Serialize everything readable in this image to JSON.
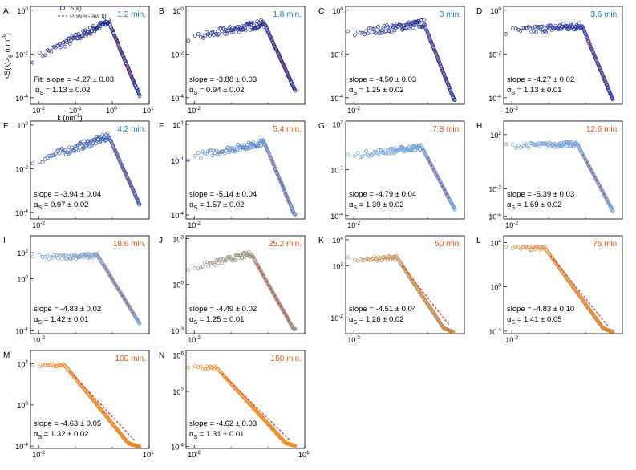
{
  "figure": {
    "xlabel": "k (nm",
    "xlabel_sup": "-1",
    "xlabel_close": ")",
    "ylabel": "<S(k)>",
    "ylabel_sub": "θ",
    "ylabel_unit": "(nm",
    "ylabel_unit_sup": "-3",
    "ylabel_unit_close": ")",
    "legend": {
      "data": "S(k)",
      "fit": "Power-law fit"
    },
    "fit_prefix": "Fit: ",
    "alpha_symbol": "α",
    "alpha_sub": "S",
    "pm": "±",
    "colors": {
      "blue_label": "#1e78d4",
      "orange_label": "#e8541a",
      "fit_line": "#e03030"
    }
  },
  "chart_data": [
    {
      "type": "scatter",
      "panel": "A",
      "time": "1.2 min.",
      "slope": "-4.27 ± 0.03",
      "alpha": "1.13 ± 0.02",
      "xlim": [
        0.006,
        10
      ],
      "ylim": [
        5e-05,
        1.5
      ],
      "peak_k": 0.8,
      "peak_S": 0.3,
      "low_S": 0.006,
      "marker_color": "#1c2a8c",
      "xticks": [
        {
          "v": 0.01,
          "base": "10",
          "exp": "-2"
        },
        {
          "v": 0.1,
          "base": "10",
          "exp": "-1"
        },
        {
          "v": 1,
          "base": "10",
          "exp": "0"
        },
        {
          "v": 10,
          "base": "10",
          "exp": "1"
        }
      ],
      "yticks": [
        {
          "v": 1,
          "base": "10",
          "exp": "0"
        },
        {
          "v": 0.01,
          "base": "10",
          "exp": "-2"
        },
        {
          "v": 0.0001,
          "base": "10",
          "exp": "-4"
        }
      ]
    },
    {
      "type": "scatter",
      "panel": "B",
      "time": "1.8 min.",
      "slope": "-3.88 ± 0.03",
      "alpha": "0.94 ± 0.02",
      "xlim": [
        0.006,
        10
      ],
      "ylim": [
        5e-05,
        1.5
      ],
      "peak_k": 0.8,
      "peak_S": 0.25,
      "low_S": 0.05,
      "marker_color": "#1c2a8c",
      "xticks": [
        {
          "v": 0.01,
          "base": "10",
          "exp": "-2"
        }
      ],
      "yticks": [
        {
          "v": 1,
          "base": "10",
          "exp": "0"
        },
        {
          "v": 0.01,
          "base": "10",
          "exp": "-2"
        },
        {
          "v": 0.0001,
          "base": "10",
          "exp": "-4"
        }
      ]
    },
    {
      "type": "scatter",
      "panel": "C",
      "time": "3 min.",
      "slope": "-4.50 ± 0.03",
      "alpha": "1.25 ± 0.02",
      "xlim": [
        0.006,
        10
      ],
      "ylim": [
        5e-05,
        1.5
      ],
      "peak_k": 0.8,
      "peak_S": 0.25,
      "low_S": 0.08,
      "marker_color": "#223096",
      "xticks": [
        {
          "v": 0.01,
          "base": "10",
          "exp": "-2"
        }
      ],
      "yticks": [
        {
          "v": 1,
          "base": "10",
          "exp": "0"
        },
        {
          "v": 0.01,
          "base": "10",
          "exp": "-2"
        },
        {
          "v": 0.0001,
          "base": "10",
          "exp": "-4"
        }
      ]
    },
    {
      "type": "scatter",
      "panel": "D",
      "time": "3.6 min.",
      "slope": "-4.27 ± 0.02",
      "alpha": "1.13 ± 0.01",
      "xlim": [
        0.006,
        10
      ],
      "ylim": [
        5e-05,
        1.5
      ],
      "peak_k": 0.8,
      "peak_S": 0.2,
      "low_S": 0.1,
      "marker_color": "#26379e",
      "xticks": [
        {
          "v": 0.01,
          "base": "10",
          "exp": "-2"
        }
      ],
      "yticks": [
        {
          "v": 1,
          "base": "10",
          "exp": "0"
        },
        {
          "v": 0.01,
          "base": "10",
          "exp": "-2"
        },
        {
          "v": 0.0001,
          "base": "10",
          "exp": "-4"
        }
      ]
    },
    {
      "type": "scatter",
      "panel": "E",
      "time": "4.2 min.",
      "slope": "-3.94 ± 0.04",
      "alpha": "0.97 ± 0.02",
      "xlim": [
        0.006,
        10
      ],
      "ylim": [
        5e-05,
        1.5
      ],
      "peak_k": 0.8,
      "peak_S": 0.3,
      "low_S": 0.02,
      "marker_color": "#3c5cb0",
      "xticks": [
        {
          "v": 0.01,
          "base": "10",
          "exp": "-2"
        }
      ],
      "yticks": [
        {
          "v": 1,
          "base": "10",
          "exp": "0"
        },
        {
          "v": 0.01,
          "base": "10",
          "exp": "-2"
        },
        {
          "v": 0.0001,
          "base": "10",
          "exp": "-4"
        }
      ]
    },
    {
      "type": "scatter",
      "panel": "F",
      "time": "5.4 min.",
      "slope": "-5.14 ± 0.04",
      "alpha": "1.57 ± 0.02",
      "xlim": [
        0.006,
        10
      ],
      "ylim": [
        6e-05,
        15
      ],
      "peak_k": 0.8,
      "peak_S": 1.0,
      "low_S": 0.15,
      "marker_color": "#5a86c8",
      "xticks": [
        {
          "v": 0.01,
          "base": "10",
          "exp": "-2"
        }
      ],
      "yticks": [
        {
          "v": 10,
          "base": "10",
          "exp": "1"
        },
        {
          "v": 0.1,
          "base": "10",
          "exp": "-1"
        },
        {
          "v": 0.0001,
          "base": "10",
          "exp": "-4"
        }
      ]
    },
    {
      "type": "scatter",
      "panel": "G",
      "time": "7.8 min.",
      "slope": "-4.79 ± 0.04",
      "alpha": "1.39 ± 0.02",
      "xlim": [
        0.006,
        10
      ],
      "ylim": [
        6e-05,
        150
      ],
      "peak_k": 0.7,
      "peak_S": 3,
      "low_S": 0.8,
      "marker_color": "#6a9ad2",
      "xticks": [
        {
          "v": 0.01,
          "base": "10",
          "exp": "-2"
        }
      ],
      "yticks": [
        {
          "v": 100,
          "base": "10",
          "exp": "2"
        },
        {
          "v": 0.1,
          "base": "10",
          "exp": "-1"
        },
        {
          "v": 0.0001,
          "base": "10",
          "exp": "-4"
        }
      ]
    },
    {
      "type": "scatter",
      "panel": "H",
      "time": "12.6 min.",
      "slope": "-5.39 ± 0.03",
      "alpha": "1.69 ± 0.02",
      "xlim": [
        0.006,
        10
      ],
      "ylim": [
        6e-05,
        1000
      ],
      "peak_k": 0.6,
      "peak_S": 20,
      "low_S": 15,
      "marker_color": "#6f9ed4",
      "xticks": [
        {
          "v": 0.01,
          "base": "10",
          "exp": "-2"
        }
      ],
      "yticks": [
        {
          "v": 100,
          "base": "10",
          "exp": "2"
        },
        {
          "v": 0.01,
          "base": "10",
          "exp": "-2"
        },
        {
          "v": 0.0001,
          "base": "10",
          "exp": "-4"
        }
      ]
    },
    {
      "type": "scatter",
      "panel": "I",
      "time": "18.6 min.",
      "slope": "-4.83 ± 0.02",
      "alpha": "1.42 ± 0.01",
      "xlim": [
        0.006,
        10
      ],
      "ylim": [
        6e-05,
        2000
      ],
      "peak_k": 0.4,
      "peak_S": 60,
      "low_S": 40,
      "marker_color": "#7c9cc4",
      "xticks": [
        {
          "v": 0.01,
          "base": "10",
          "exp": "-2"
        }
      ],
      "yticks": [
        {
          "v": 100,
          "base": "10",
          "exp": "2"
        },
        {
          "v": 1,
          "base": "10",
          "exp": "0"
        },
        {
          "v": 0.0001,
          "base": "10",
          "exp": "-4"
        }
      ]
    },
    {
      "type": "scatter",
      "panel": "J",
      "time": "25.2 min.",
      "slope": "-4.49 ± 0.02",
      "alpha": "1.25 ± 0.01",
      "xlim": [
        0.006,
        10
      ],
      "ylim": [
        0.0006,
        1500
      ],
      "peak_k": 0.35,
      "peak_S": 100,
      "low_S": 10,
      "marker_color": "#9a9080",
      "xticks": [
        {
          "v": 0.01,
          "base": "10",
          "exp": "-2"
        }
      ],
      "yticks": [
        {
          "v": 1000,
          "base": "10",
          "exp": "3"
        },
        {
          "v": 1,
          "base": "10",
          "exp": "0"
        },
        {
          "v": 0.001,
          "base": "10",
          "exp": "-3"
        }
      ]
    },
    {
      "type": "scatter",
      "panel": "K",
      "time": "50 min.",
      "slope": "-4.51 ± 0.04",
      "alpha": "1.26 ± 0.02",
      "xlim": [
        0.006,
        10
      ],
      "ylim": [
        0.0006,
        20000
      ],
      "peak_k": 0.15,
      "peak_S": 400,
      "low_S": 300,
      "marker_color": "#c08c50",
      "xticks": [
        {
          "v": 0.01,
          "base": "10",
          "exp": "-2"
        }
      ],
      "yticks": [
        {
          "v": 10000,
          "base": "10",
          "exp": "4"
        },
        {
          "v": 100,
          "base": "10",
          "exp": "2"
        },
        {
          "v": 0.01,
          "base": "10",
          "exp": "-2"
        }
      ]
    },
    {
      "type": "scatter",
      "panel": "L",
      "time": "75 min.",
      "slope": "-4.83 ± 0.10",
      "alpha": "1.41 ± 0.05",
      "xlim": [
        0.006,
        10
      ],
      "ylim": [
        6e-05,
        40000
      ],
      "peak_k": 0.08,
      "peak_S": 3000,
      "low_S": 3000,
      "marker_color": "#d88a38",
      "xticks": [
        {
          "v": 0.01,
          "base": "10",
          "exp": "-2"
        }
      ],
      "yticks": [
        {
          "v": 10000,
          "base": "10",
          "exp": "4"
        },
        {
          "v": 1,
          "base": "10",
          "exp": "0"
        },
        {
          "v": 0.0001,
          "base": "10",
          "exp": "-4"
        }
      ]
    },
    {
      "type": "scatter",
      "panel": "M",
      "time": "100 min.",
      "slope": "-4.63 ± 0.05",
      "alpha": "1.32 ± 0.02",
      "xlim": [
        0.006,
        10
      ],
      "ylim": [
        6e-05,
        200000
      ],
      "peak_k": 0.05,
      "peak_S": 8000,
      "low_S": 8000,
      "marker_color": "#e8862a",
      "xticks": [
        {
          "v": 0.01,
          "base": "10",
          "exp": "-2"
        },
        {
          "v": 10,
          "base": "10",
          "exp": "1"
        }
      ],
      "yticks": [
        {
          "v": 10000,
          "base": "10",
          "exp": "4"
        },
        {
          "v": 1,
          "base": "10",
          "exp": "0"
        },
        {
          "v": 0.0001,
          "base": "10",
          "exp": "-4"
        }
      ]
    },
    {
      "type": "scatter",
      "panel": "N",
      "time": "150 min.",
      "slope": "-4.62 ± 0.03",
      "alpha": "1.31 ± 0.01",
      "xlim": [
        0.006,
        10
      ],
      "ylim": [
        6e-05,
        3000000
      ],
      "peak_k": 0.04,
      "peak_S": 40000,
      "low_S": 40000,
      "marker_color": "#ee8a22",
      "xticks": [
        {
          "v": 0.01,
          "base": "10",
          "exp": "-2"
        },
        {
          "v": 10,
          "base": "10",
          "exp": "1"
        }
      ],
      "yticks": [
        {
          "v": 1000000,
          "base": "10",
          "exp": "6"
        },
        {
          "v": 100,
          "base": "10",
          "exp": "2"
        },
        {
          "v": 0.0001,
          "base": "10",
          "exp": "-4"
        }
      ]
    }
  ]
}
